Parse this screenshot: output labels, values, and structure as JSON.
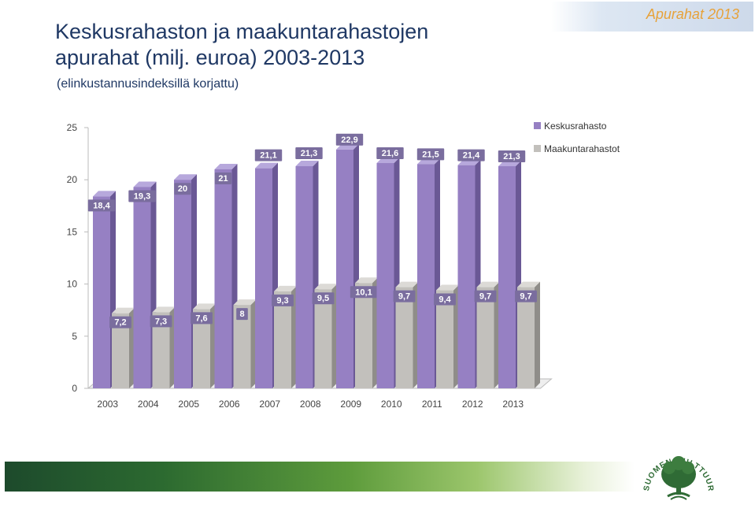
{
  "header": {
    "title": "Keskusrahaston ja maakuntarahastojen apurahat (milj. euroa) 2003-2013",
    "subtitle": "(elinkustannusindeksillä korjattu)",
    "corner_label": "Apurahat 2013"
  },
  "logo": {
    "text": "SUOMEN KULTTUURIRAHASTO"
  },
  "colors": {
    "keskus_front": "#9680c3",
    "keskus_side": "#6a5895",
    "keskus_top": "#b7a8dc",
    "maakunta_front": "#c2c0bc",
    "maakunta_side": "#8f8d89",
    "maakunta_top": "#dcdad6",
    "label_bg": "#7a6d9e",
    "bar_green_dark": "#1d4a2c",
    "bar_green_light": "#9cc66c",
    "title_color": "#1f3864",
    "corner_label_color": "#e7a23a"
  },
  "chart_data": {
    "type": "bar",
    "categories": [
      "2003",
      "2004",
      "2005",
      "2006",
      "2007",
      "2008",
      "2009",
      "2010",
      "2011",
      "2012",
      "2013"
    ],
    "series": [
      {
        "name": "Keskusrahasto",
        "values": [
          18.4,
          19.3,
          20,
          21,
          21.1,
          21.3,
          22.9,
          21.6,
          21.5,
          21.4,
          21.3
        ],
        "labels": [
          "18,4",
          "19,3",
          "20",
          "21",
          "21,1",
          "21,3",
          "22,9",
          "21,6",
          "21,5",
          "21,4",
          "21,3"
        ]
      },
      {
        "name": "Maakuntarahastot",
        "values": [
          7.2,
          7.3,
          7.6,
          8,
          9.3,
          9.5,
          10.1,
          9.7,
          9.4,
          9.7,
          9.7
        ],
        "labels": [
          "7,2",
          "7,3",
          "7,6",
          "8",
          "9,3",
          "9,5",
          "10,1",
          "9,7",
          "9,4",
          "9,7",
          "9,7"
        ]
      }
    ],
    "yticks": [
      "0",
      "5",
      "10",
      "15",
      "20",
      "25"
    ],
    "ylim": [
      0,
      25
    ],
    "legend_position": "top-right",
    "grid": false,
    "style": "3d-clustered"
  }
}
